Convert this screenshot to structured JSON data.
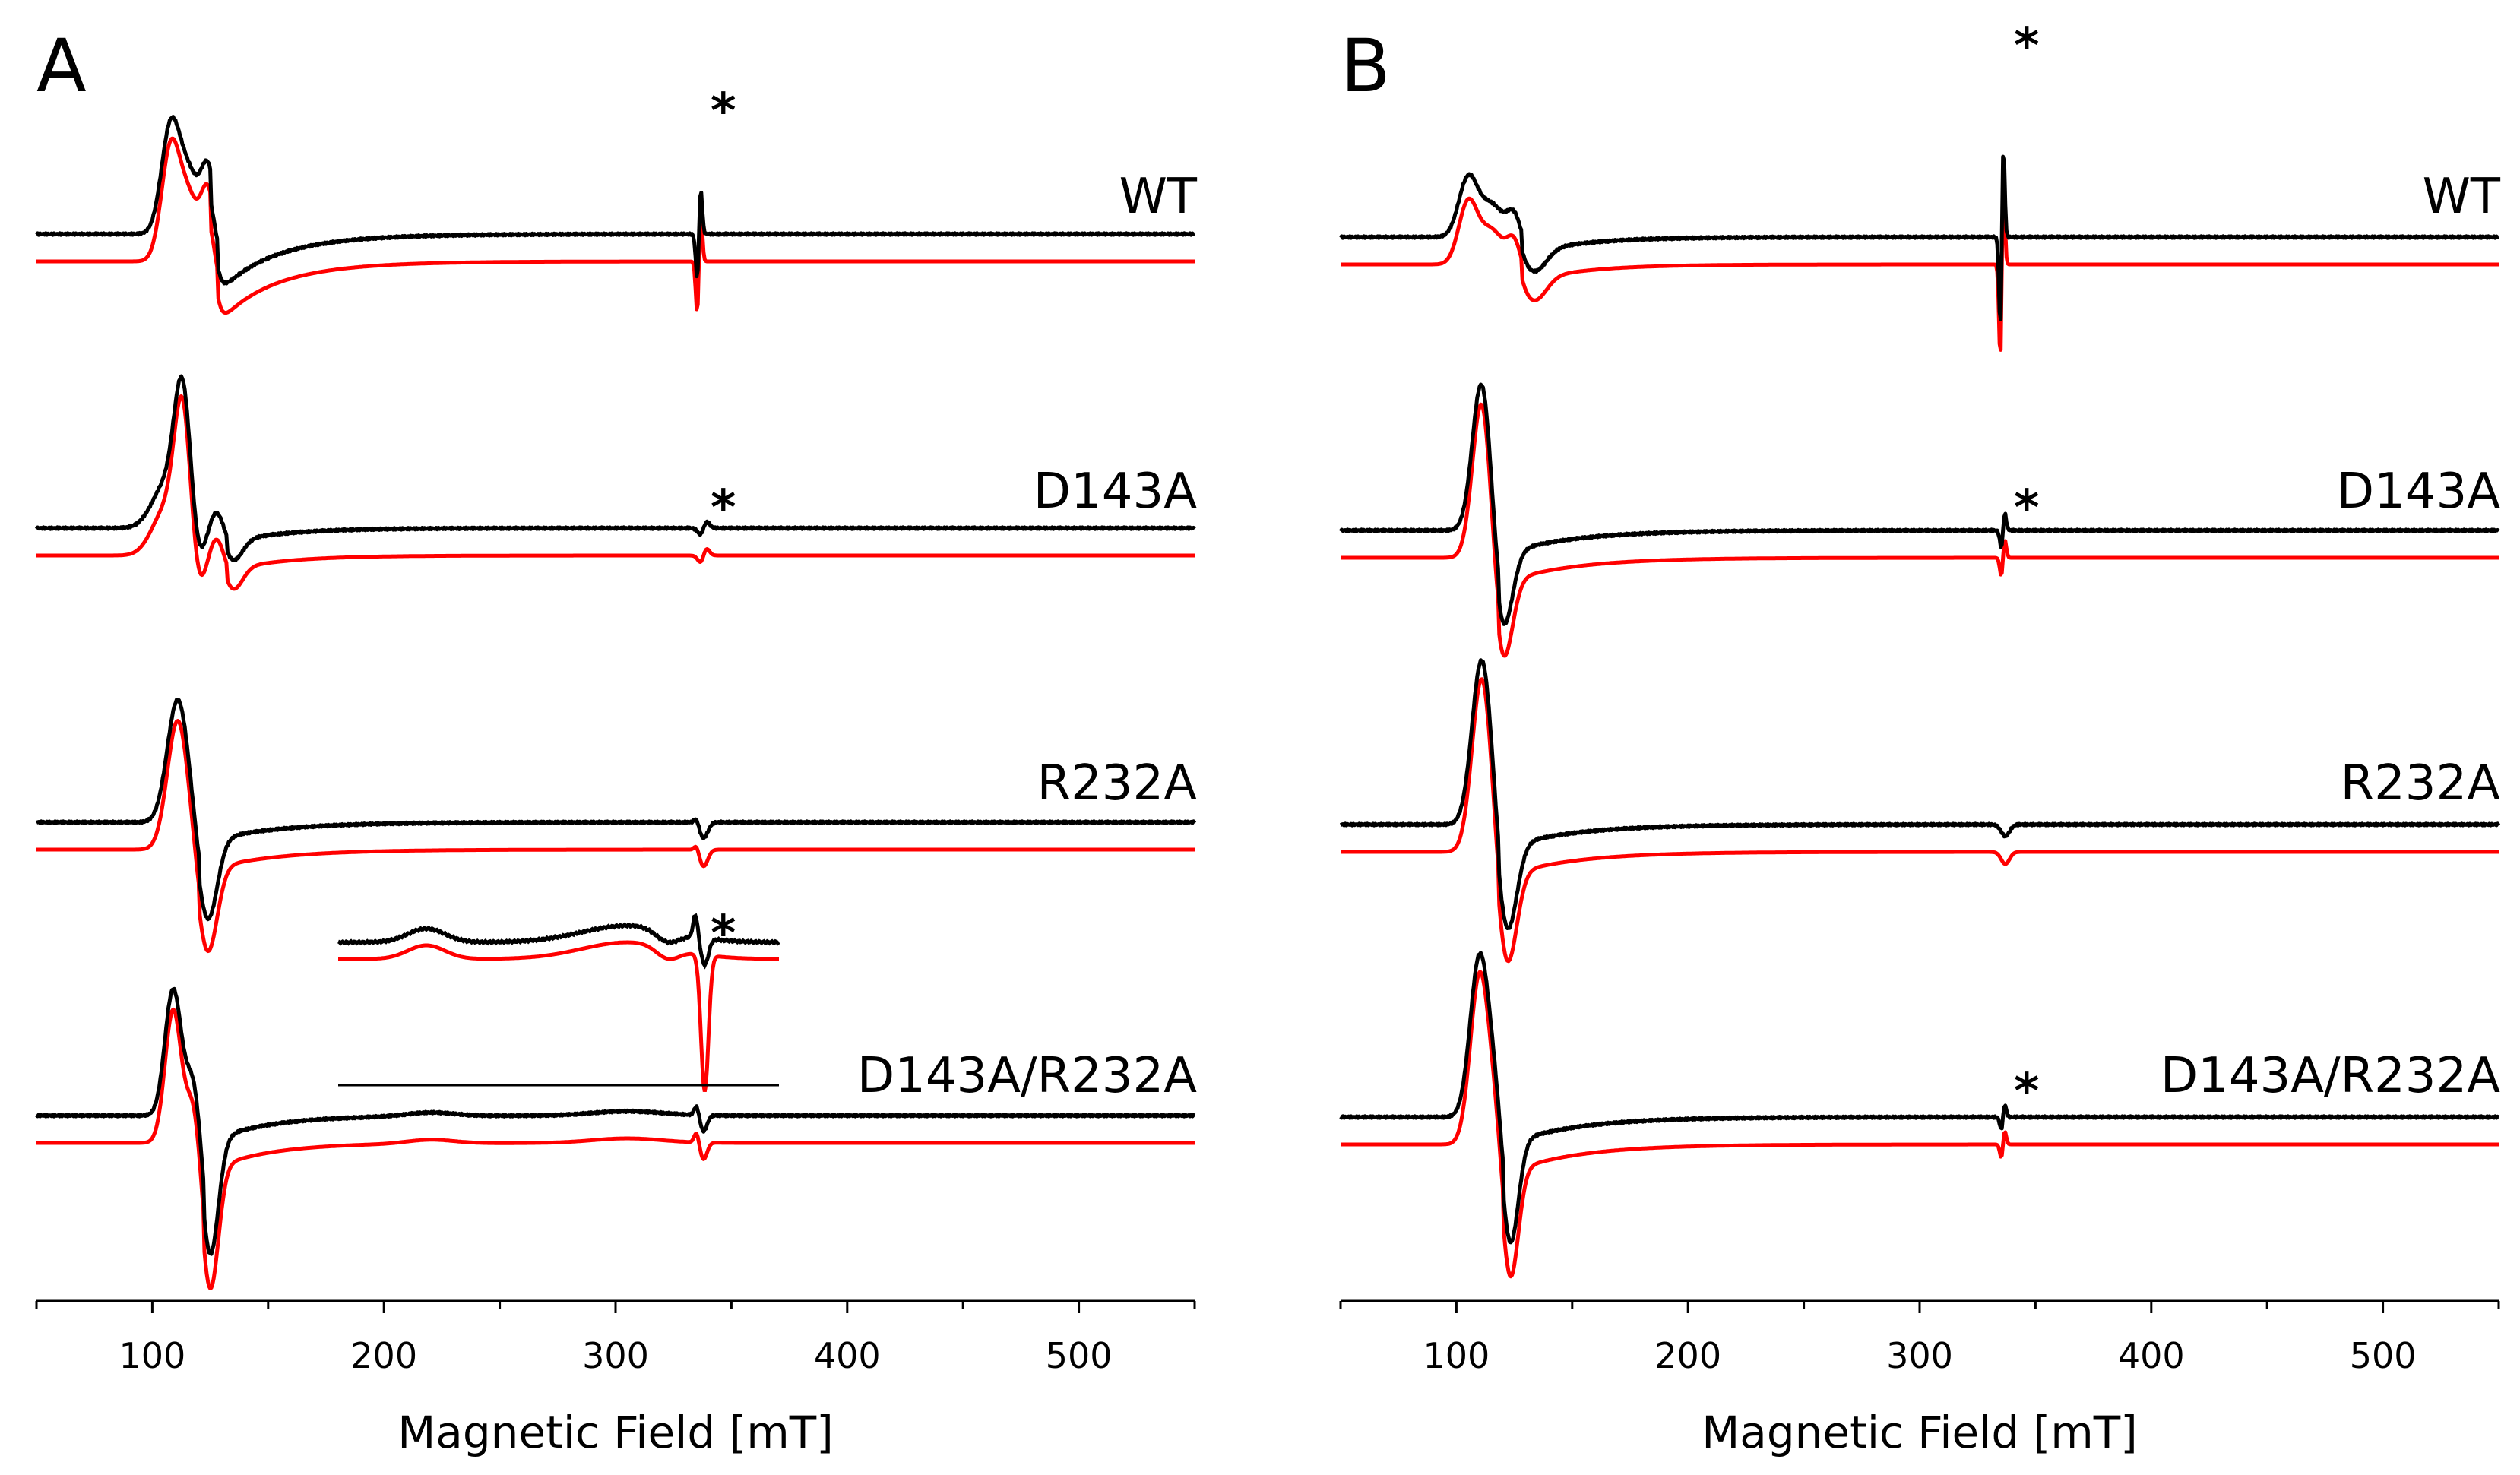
{
  "chart_data": [
    {
      "panel": "A",
      "type": "line",
      "xlabel": "Magnetic Field [mT]",
      "ylabel": "",
      "xlim": [
        50,
        550
      ],
      "xticks": [
        100,
        200,
        300,
        400,
        500
      ],
      "colors": {
        "experimental": "#000000",
        "simulation": "#ff0000"
      },
      "traces": [
        {
          "label": "WT",
          "star": "*",
          "shape": "wt"
        },
        {
          "label": "D143A",
          "star": "*",
          "shape": "d143a"
        },
        {
          "label": "R232A",
          "star": "",
          "shape": "r232a"
        },
        {
          "label": "D143A/R232A",
          "star": "",
          "shape": "double"
        }
      ],
      "inset": {
        "star": "*",
        "xlim": [
          180,
          370
        ]
      }
    },
    {
      "panel": "B",
      "type": "line",
      "xlabel": "Magnetic Field [mT]",
      "ylabel": "",
      "xlim": [
        50,
        550
      ],
      "xticks": [
        100,
        200,
        300,
        400,
        500
      ],
      "colors": {
        "experimental": "#000000",
        "simulation": "#ff0000"
      },
      "traces": [
        {
          "label": "WT",
          "star": "*",
          "shape": "wtB"
        },
        {
          "label": "D143A",
          "star": "*",
          "shape": "d143aB"
        },
        {
          "label": "R232A",
          "star": "",
          "shape": "r232aB"
        },
        {
          "label": "D143A/R232A",
          "star": "*",
          "shape": "doubleB"
        }
      ]
    }
  ],
  "tick_labels": [
    "100",
    "200",
    "300",
    "400",
    "500"
  ]
}
